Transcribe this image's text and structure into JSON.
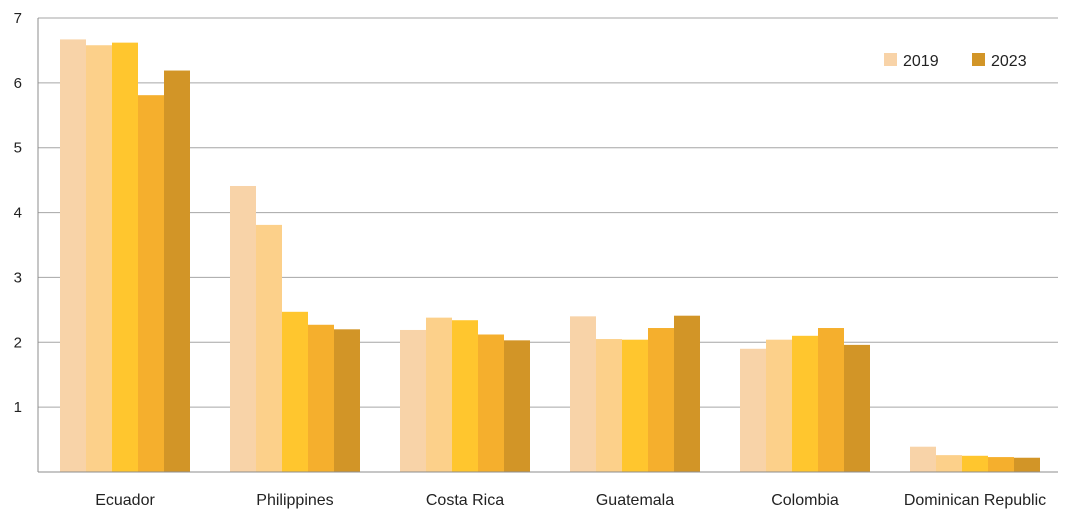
{
  "chart_data": {
    "type": "bar",
    "categories": [
      "Ecuador",
      "Philippines",
      "Costa Rica",
      "Guatemala",
      "Colombia",
      "Dominican Republic"
    ],
    "series": [
      {
        "name": "2019",
        "color": "#F8D3A8",
        "values": [
          6.67,
          4.41,
          2.19,
          2.4,
          1.9,
          0.39
        ]
      },
      {
        "name": "",
        "color": "#FCD08A",
        "values": [
          6.58,
          3.81,
          2.38,
          2.05,
          2.04,
          0.26
        ]
      },
      {
        "name": "",
        "color": "#FFC62E",
        "values": [
          6.62,
          2.47,
          2.34,
          2.04,
          2.1,
          0.25
        ]
      },
      {
        "name": "",
        "color": "#F5AF2D",
        "values": [
          5.81,
          2.27,
          2.12,
          2.22,
          2.22,
          0.23
        ]
      },
      {
        "name": "2023",
        "color": "#D29527",
        "values": [
          6.19,
          2.2,
          2.03,
          2.41,
          1.96,
          0.22
        ]
      }
    ],
    "yticks": [
      "1",
      "2",
      "3",
      "4",
      "5",
      "6",
      "7"
    ],
    "ylim": [
      0,
      7
    ],
    "grid": true,
    "legend_position": "top-right",
    "legend": [
      {
        "label": "2019",
        "color": "#F8D3A8"
      },
      {
        "label": "2023",
        "color": "#D29527"
      }
    ],
    "title": "",
    "xlabel": "",
    "ylabel": ""
  }
}
